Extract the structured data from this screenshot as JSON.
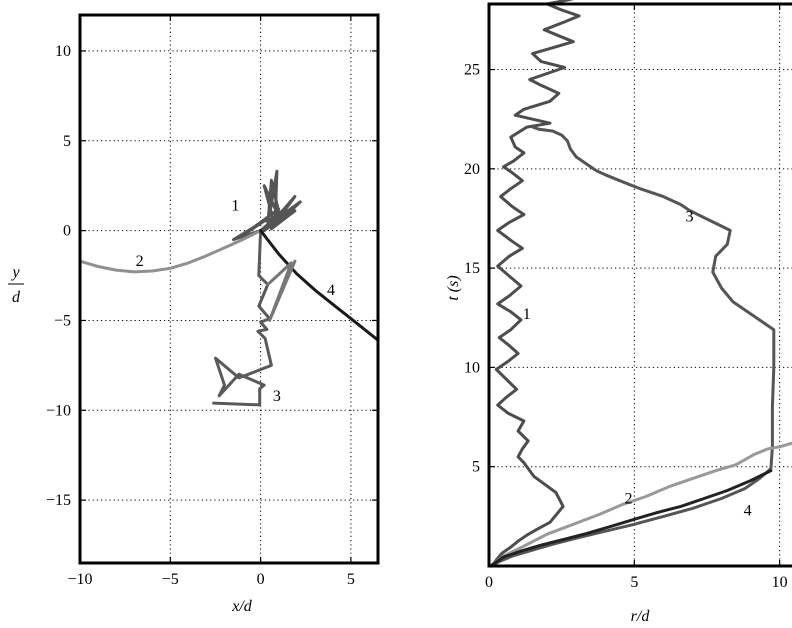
{
  "chart_data": [
    {
      "type": "line",
      "xlabel": "x/d",
      "ylabel_num": "y",
      "ylabel_den": "d",
      "xlim": [
        -10,
        6.5
      ],
      "ylim": [
        -18.5,
        12
      ],
      "xticks": [
        -10,
        -5,
        0,
        5
      ],
      "yticks": [
        10,
        5,
        0,
        -5,
        -10,
        -15
      ],
      "tick_labels_x": [
        "−10",
        "−5",
        "0",
        "5"
      ],
      "tick_labels_y": [
        "10",
        "5",
        "0",
        "−5",
        "−10",
        "−15"
      ],
      "grid": true,
      "series": [
        {
          "name": "1",
          "color": "#555555",
          "x": [
            0,
            -1.5,
            0.3,
            -0.9,
            0.6,
            -0.3,
            1.0,
            0.1,
            1.3,
            0.2,
            1.5,
            0.4,
            1.9,
            0.6,
            2.2,
            0.7,
            1.9,
            0.8,
            0.9,
            0.4,
            0.6,
            1.1,
            0.2,
            0.7,
            0
          ],
          "y": [
            0,
            -0.5,
            0.6,
            -0.2,
            0.9,
            0.2,
            1.2,
            0.5,
            0.8,
            0.0,
            1.4,
            0.3,
            1.1,
            0.1,
            1.6,
            0.5,
            1.9,
            0.4,
            3.3,
            0.3,
            2.8,
            0.6,
            2.5,
            0.6,
            0
          ]
        },
        {
          "name": "2",
          "color": "#909090",
          "x": [
            -10,
            -9,
            -8,
            -7,
            -6,
            -5,
            -4,
            -3,
            -2,
            -1,
            -0.3,
            0
          ],
          "y": [
            -1.7,
            -2.0,
            -2.2,
            -2.3,
            -2.25,
            -2.1,
            -1.8,
            -1.4,
            -0.95,
            -0.5,
            -0.15,
            0
          ]
        },
        {
          "name": "3",
          "color": "#5a5a5a",
          "x": [
            0,
            -0.1,
            0.4,
            -0.1,
            0.5,
            0.0,
            0.35,
            -0.15,
            0.25,
            0.6,
            -1.2,
            -2.5,
            -2.0,
            -2.3,
            -1.2,
            0.2,
            -0.05,
            -0.05,
            -2.6
          ],
          "y": [
            0,
            -2.5,
            -3.0,
            -4.2,
            -4.9,
            -5.1,
            -5.5,
            -5.6,
            -6.0,
            -7.5,
            -8.2,
            -7.1,
            -8.6,
            -9.2,
            -8.0,
            -8.6,
            -8.8,
            -9.7,
            -9.6
          ]
        },
        {
          "name": "4",
          "color": "#1a1a1a",
          "x": [
            0,
            1,
            2,
            3,
            4,
            5,
            6.5
          ],
          "y": [
            0,
            -1.3,
            -2.4,
            -3.3,
            -4.1,
            -4.9,
            -6.1
          ]
        },
        {
          "name": "",
          "color": "#777777",
          "x": [
            0.4,
            1.7,
            0.5,
            1.9
          ],
          "y": [
            -3.0,
            -1.8,
            -5.0,
            -1.7
          ]
        }
      ],
      "labels": [
        {
          "text": "1",
          "x": -1.4,
          "y": 1.4
        },
        {
          "text": "2",
          "x": -6.7,
          "y": -1.7
        },
        {
          "text": "3",
          "x": 0.9,
          "y": -9.2
        },
        {
          "text": "4",
          "x": 3.9,
          "y": -3.3
        }
      ]
    },
    {
      "type": "line",
      "xlabel": "r/d",
      "ylabel": "t (s)",
      "xlim": [
        0,
        10.7
      ],
      "ylim": [
        0,
        28.3
      ],
      "xticks": [
        0,
        5,
        10
      ],
      "yticks": [
        5,
        10,
        15,
        20,
        25
      ],
      "tick_labels_x": [
        "0",
        "5",
        "10"
      ],
      "tick_labels_y": [
        "5",
        "10",
        "15",
        "20",
        "25"
      ],
      "grid": true,
      "series": [
        {
          "name": "1",
          "color": "#4d4d4d",
          "x": [
            0.1,
            0.25,
            0.45,
            0.75,
            1.0,
            1.3,
            1.65,
            2.1,
            2.55,
            2.3,
            1.55,
            1.2,
            1.0,
            1.15,
            1.35,
            1.0,
            1.2,
            0.65,
            0.3,
            0.6,
            0.95,
            0.6,
            0.25,
            0.65,
            1.0,
            0.7,
            0.35,
            0.75,
            1.1,
            0.75,
            0.3,
            0.7,
            1.1,
            0.7,
            0.3,
            0.7,
            1.15,
            0.75,
            0.3,
            0.7,
            1.2,
            0.8,
            0.4,
            0.75,
            1.15,
            0.8,
            0.5,
            0.85,
            1.2,
            0.9,
            0.75,
            1.3,
            2.1,
            1.5,
            0.9,
            1.2,
            2.1,
            2.4,
            1.8,
            1.4,
            2.0,
            2.6,
            1.8,
            1.5,
            2.2,
            2.9,
            2.4,
            1.9,
            2.6,
            3.1,
            2.5,
            2.0,
            2.7,
            3.0,
            2.9
          ],
          "y": [
            0,
            0.3,
            0.65,
            0.95,
            1.25,
            1.55,
            1.85,
            2.2,
            3.0,
            3.7,
            4.5,
            5.2,
            5.5,
            5.9,
            6.3,
            6.8,
            7.3,
            7.7,
            8.1,
            8.5,
            8.9,
            9.4,
            9.9,
            10.3,
            10.7,
            11.1,
            11.5,
            11.9,
            12.4,
            12.8,
            13.2,
            13.6,
            14.1,
            14.6,
            15.1,
            15.6,
            16.0,
            16.4,
            16.9,
            17.3,
            17.7,
            18.1,
            18.6,
            19.0,
            19.4,
            19.8,
            20.1,
            20.4,
            20.8,
            21.1,
            21.6,
            22.1,
            22.3,
            22.5,
            22.7,
            23.0,
            23.4,
            23.8,
            24.2,
            24.5,
            24.8,
            25.1,
            25.4,
            25.8,
            26.1,
            26.4,
            26.7,
            27.0,
            27.4,
            27.7,
            28.0,
            28.3,
            28.5,
            28.6,
            28.6
          ]
        },
        {
          "name": "3",
          "color": "#555555",
          "x": [
            0.05,
            0.4,
            0.8,
            1.5,
            2.2,
            3.0,
            4.0,
            5.0,
            6.0,
            7.0,
            8.0,
            8.8,
            9.3,
            9.7,
            9.75,
            9.75,
            9.8,
            9.8,
            8.4,
            8.0,
            7.7,
            7.8,
            8.2,
            8.3,
            7.6,
            6.9,
            6.6,
            6.0,
            5.2,
            4.5,
            4.0,
            3.7,
            3.3,
            3.0,
            2.8,
            2.7,
            2.5,
            2.2,
            1.7,
            1.5
          ],
          "y": [
            0,
            0.25,
            0.5,
            0.8,
            1.1,
            1.4,
            1.75,
            2.1,
            2.5,
            2.9,
            3.4,
            3.9,
            4.4,
            4.9,
            6.0,
            8.0,
            10.0,
            11.9,
            13.3,
            14.0,
            14.8,
            15.6,
            16.2,
            16.9,
            17.4,
            17.9,
            18.2,
            18.6,
            19.0,
            19.4,
            19.7,
            19.9,
            20.3,
            20.6,
            21.0,
            21.4,
            21.7,
            21.9,
            22.0,
            22.1
          ]
        },
        {
          "name": "2",
          "color": "#999999",
          "x": [
            0.05,
            0.5,
            1.2,
            2.0,
            2.9,
            3.8,
            4.6,
            5.4,
            6.2,
            7.0,
            7.8,
            8.5,
            9.1,
            9.6,
            10.0,
            10.7
          ],
          "y": [
            0,
            0.5,
            1.0,
            1.6,
            2.1,
            2.6,
            3.1,
            3.5,
            4.0,
            4.4,
            4.8,
            5.1,
            5.6,
            5.9,
            6.0,
            6.3
          ]
        },
        {
          "name": "4",
          "color": "#222222",
          "x": [
            0.05,
            0.5,
            1.1,
            1.8,
            2.6,
            3.4,
            4.2,
            5.0,
            5.8,
            6.6,
            7.4,
            8.2,
            9.0,
            9.7
          ],
          "y": [
            0,
            0.45,
            0.75,
            1.05,
            1.35,
            1.65,
            2.0,
            2.35,
            2.7,
            3.0,
            3.4,
            3.8,
            4.3,
            4.8
          ]
        }
      ],
      "labels": [
        {
          "text": "1",
          "x": 1.3,
          "y": 12.7
        },
        {
          "text": "2",
          "x": 4.8,
          "y": 3.4
        },
        {
          "text": "3",
          "x": 6.9,
          "y": 17.6
        },
        {
          "text": "4",
          "x": 8.9,
          "y": 2.8
        }
      ]
    }
  ]
}
